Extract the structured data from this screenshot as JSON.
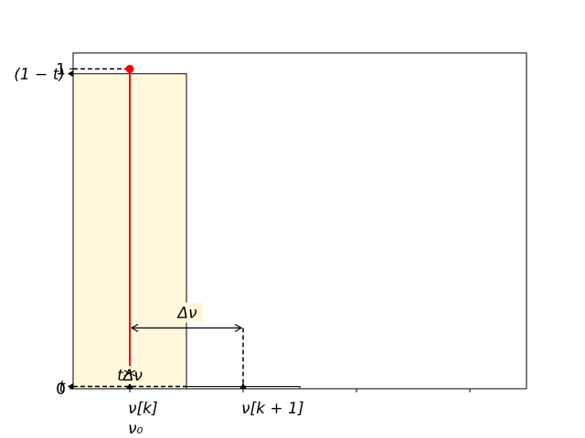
{
  "chart_data": {
    "type": "bar",
    "title": "",
    "xlabel": "",
    "ylabel": "",
    "xlim": [
      0,
      4
    ],
    "ylim": [
      0,
      1.05
    ],
    "bar_color": "#fff8dc",
    "bars": [
      {
        "x0": 0,
        "x1": 1,
        "height": 0.985
      },
      {
        "x0": 1,
        "x1": 2,
        "height": 0.007
      }
    ],
    "x_ticks": [
      {
        "value": 0.5,
        "label": "ν[k]"
      },
      {
        "value": 1.5,
        "label": "ν[k + 1]"
      },
      {
        "value": 2.5,
        "label": ""
      },
      {
        "value": 3.5,
        "label": ""
      }
    ],
    "x_extra_label": {
      "value": 0.5,
      "label": "ν₀"
    },
    "y_ticks": [
      {
        "value": 0,
        "label": "0"
      },
      {
        "value": 1,
        "label": "1"
      }
    ],
    "y_extra_labels": [
      {
        "value": 0.985,
        "label": "(1 − t)"
      },
      {
        "value": 0.007,
        "label": "t"
      }
    ],
    "red_line": {
      "x": 0.5,
      "y0": 0,
      "y1": 1,
      "color": "#ff0000"
    },
    "red_point": {
      "x": 0.5,
      "y": 1,
      "color": "#ff0000"
    },
    "annotations": [
      {
        "name": "delta-nu",
        "label": "Δν",
        "x0": 0.5,
        "x1": 1.5,
        "y": 0.19
      },
      {
        "name": "t-delta-nu",
        "label": "tΔν",
        "x": 0.5,
        "y0": 0,
        "y1": 0.06
      }
    ]
  }
}
